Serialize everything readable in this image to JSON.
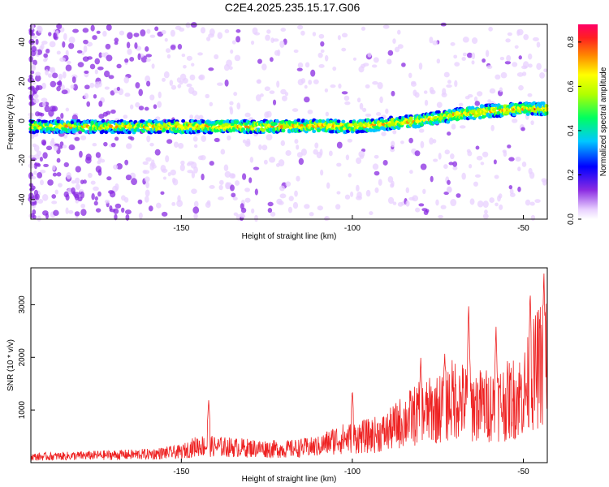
{
  "title": "C2E4.2025.235.15.17.G06",
  "colors": {
    "snr_line": "#ee2222",
    "axis": "#000000"
  },
  "chart_data": [
    {
      "type": "heatmap",
      "xlabel": "Height of straight line (km)",
      "ylabel": "Frequency (Hz)",
      "xlim": [
        -194,
        -43
      ],
      "ylim": [
        -50,
        49
      ],
      "xticks": [
        -150,
        -100,
        -50
      ],
      "yticks": [
        -40,
        -20,
        0,
        20,
        40
      ],
      "xtick_labels": [
        "-150",
        "-100",
        "-50"
      ],
      "ytick_labels": [
        "-40",
        "-20",
        "0",
        "20",
        "40"
      ],
      "ridge": {
        "description_points_x": [
          -194,
          -160,
          -130,
          -110,
          -100,
          -80,
          -70,
          -60,
          -50,
          -43
        ],
        "description_points_y": [
          -3,
          -3,
          -3,
          -2.5,
          -3,
          0,
          3,
          5,
          6,
          6
        ]
      },
      "colorbar": {
        "label": "Normalized spectral amplitude",
        "range": [
          0,
          0.88
        ],
        "ticks": [
          0.0,
          0.2,
          0.4,
          0.6,
          0.8
        ],
        "tick_labels": [
          "0.0",
          "0.2",
          "0.4",
          "0.6",
          "0.8"
        ]
      }
    },
    {
      "type": "line",
      "xlabel": "Height of straight line (km)",
      "ylabel": "SNR (10 * v/v)",
      "xlim": [
        -194,
        -43
      ],
      "ylim": [
        0,
        3700
      ],
      "xticks": [
        -150,
        -100,
        -50
      ],
      "yticks": [
        1000,
        2000,
        3000
      ],
      "xtick_labels": [
        "-150",
        "-100",
        "-50"
      ],
      "ytick_labels": [
        "1000",
        "2000",
        "3000"
      ],
      "envelope": {
        "x": [
          -194,
          -180,
          -170,
          -160,
          -150,
          -145,
          -140,
          -130,
          -120,
          -110,
          -105,
          -100,
          -95,
          -90,
          -85,
          -80,
          -75,
          -70,
          -65,
          -60,
          -55,
          -50,
          -47,
          -44
        ],
        "y": [
          150,
          180,
          200,
          220,
          280,
          450,
          420,
          380,
          350,
          420,
          600,
          650,
          700,
          800,
          1100,
          1300,
          1400,
          1700,
          1500,
          1500,
          1600,
          1800,
          2300,
          2700
        ]
      },
      "peaks": [
        {
          "x": -142,
          "y": 1200
        },
        {
          "x": -100,
          "y": 1400
        },
        {
          "x": -80,
          "y": 2000
        },
        {
          "x": -73,
          "y": 2100
        },
        {
          "x": -66,
          "y": 3050
        },
        {
          "x": -58,
          "y": 2600
        },
        {
          "x": -48,
          "y": 3300
        },
        {
          "x": -44,
          "y": 3700
        }
      ]
    }
  ]
}
